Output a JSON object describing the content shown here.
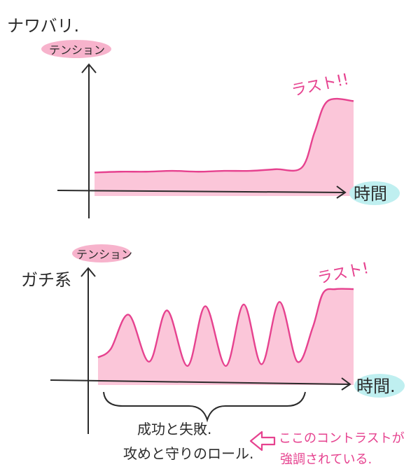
{
  "charts": [
    {
      "label": "ナワバリ.",
      "ylabel": "テンション",
      "xlabel": "時間",
      "peak_label": "ラスト!!",
      "series": {
        "type": "flat-then-spike",
        "x": [
          0,
          10,
          20,
          30,
          40,
          50,
          60,
          70,
          80,
          85,
          90,
          100
        ],
        "y": [
          10,
          11,
          11,
          12,
          11,
          12,
          12,
          14,
          16,
          60,
          98,
          98
        ]
      }
    },
    {
      "label": "ガチ系",
      "ylabel": "テンション",
      "xlabel": "時間.",
      "peak_label": "ラスト!",
      "brace_lines": [
        "成功と失敗.",
        "攻めと守りのロール."
      ],
      "series": {
        "type": "oscillating-then-spike",
        "x": [
          0,
          5,
          12,
          20,
          27,
          35,
          42,
          50,
          57,
          64,
          71,
          78,
          84,
          88,
          93,
          100
        ],
        "y": [
          20,
          30,
          70,
          15,
          75,
          10,
          80,
          10,
          82,
          12,
          85,
          15,
          55,
          95,
          100,
          100
        ]
      }
    }
  ],
  "annotation": {
    "arrow_icon": "hollow-left-arrow-icon",
    "lines": [
      "ここのコントラストが",
      "強調されている."
    ]
  },
  "colors": {
    "fill": "#fbc6d9",
    "line": "#e6428f",
    "label_bg_pink": "#f7b3cc",
    "label_bg_cyan": "#bfeff0",
    "ink": "#2b2b2b"
  }
}
